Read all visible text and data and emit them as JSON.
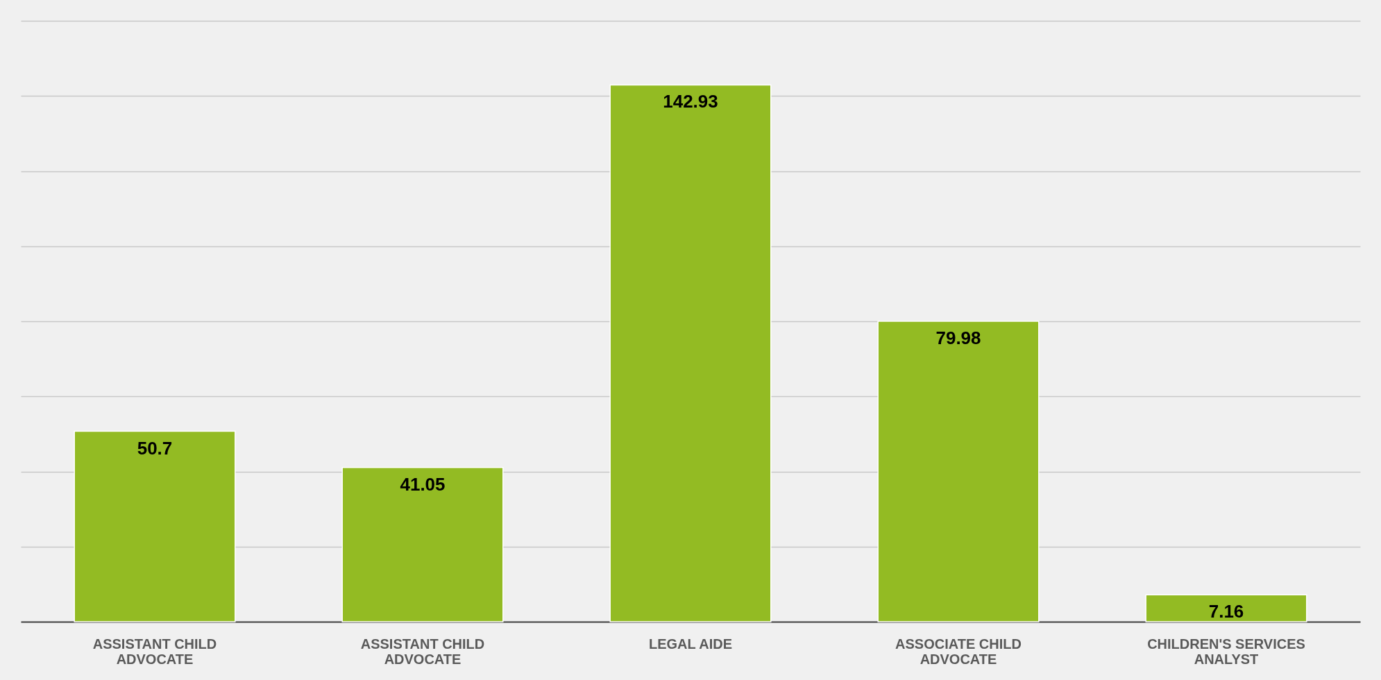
{
  "chart_data": {
    "type": "bar",
    "categories": [
      "ASSISTANT CHILD ADVOCATE",
      "ASSISTANT CHILD ADVOCATE",
      "LEGAL AIDE",
      "ASSOCIATE CHILD ADVOCATE",
      "CHILDREN'S SERVICES ANALYST"
    ],
    "values": [
      50.7,
      41.05,
      142.93,
      79.98,
      7.16
    ],
    "color": "#93bb23",
    "ylim": [
      0,
      160
    ],
    "yticks": [
      {
        "value": 0,
        "label": null
      },
      {
        "value": 20,
        "label": null
      },
      {
        "value": 40,
        "label": null
      },
      {
        "value": 60,
        "label": null
      },
      {
        "value": 80,
        "label": null
      },
      {
        "value": 100,
        "label": null
      },
      {
        "value": 120,
        "label": null
      },
      {
        "value": 140,
        "label": null
      },
      {
        "value": 160,
        "label": null
      }
    ],
    "grid": "y",
    "tick_labels": "x",
    "data_labels": true
  }
}
